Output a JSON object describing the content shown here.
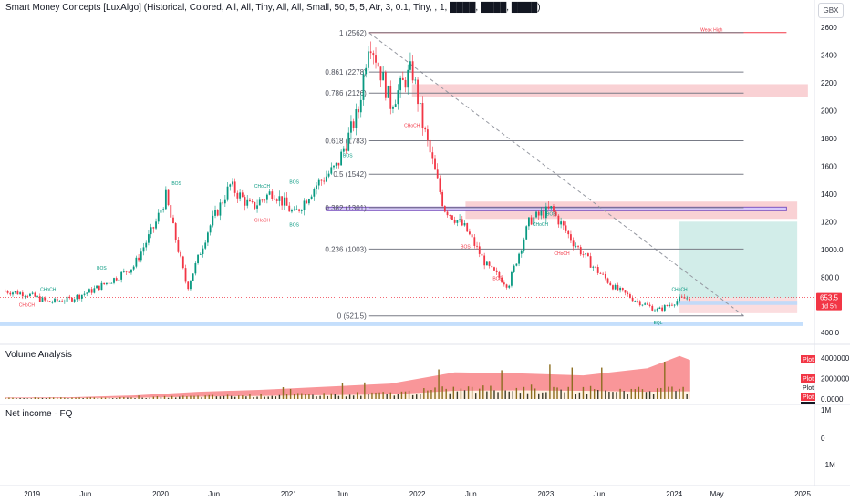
{
  "header": {
    "indicator_title": "Smart Money Concepts [LuxAlgo] (Historical, Colored, All, All, Tiny, All, All, Small, 50, 5, 5, Atr, 3, 0.1, Tiny, , 1, ████, ████, ████)",
    "currency": "GBX"
  },
  "price_label": {
    "value": "653.5",
    "countdown": "1d 5h",
    "color": "#f23645"
  },
  "panes": {
    "volume_title": "Volume Analysis",
    "net_income_title": "Net income · FQ",
    "volume_axis": [
      "4000000",
      "2000000",
      "0.0000"
    ],
    "plot_badges": [
      "Plot",
      "Plot",
      "Plot",
      "Plot"
    ],
    "net_income_axis": [
      "1M",
      "0",
      "−1M"
    ]
  },
  "chart_data": {
    "type": "candlestick",
    "ylim": [
      380,
      2700
    ],
    "price_ticks": [
      "2600",
      "2400",
      "2200",
      "2000",
      "1800",
      "1600",
      "1400",
      "1200",
      "1000.0",
      "800.0",
      "400.0"
    ],
    "x_ticks": [
      "2019",
      "Jun",
      "2020",
      "Jun",
      "2021",
      "Jun",
      "2022",
      "Jun",
      "2023",
      "Jun",
      "2024",
      "May",
      "2025"
    ],
    "close_path": [
      [
        "2018-10",
        700
      ],
      [
        "2018-12",
        680
      ],
      [
        "2019-02",
        620
      ],
      [
        "2019-04",
        640
      ],
      [
        "2019-06",
        700
      ],
      [
        "2019-08",
        780
      ],
      [
        "2019-10",
        880
      ],
      [
        "2019-12",
        1180
      ],
      [
        "2020-01",
        1380
      ],
      [
        "2020-03",
        720
      ],
      [
        "2020-05",
        1150
      ],
      [
        "2020-07",
        1460
      ],
      [
        "2020-09",
        1300
      ],
      [
        "2020-11",
        1420
      ],
      [
        "2021-01",
        1250
      ],
      [
        "2021-03",
        1460
      ],
      [
        "2021-05",
        1600
      ],
      [
        "2021-07",
        2000
      ],
      [
        "2021-08",
        2540
      ],
      [
        "2021-10",
        2050
      ],
      [
        "2021-12",
        2300
      ],
      [
        "2022-01",
        1900
      ],
      [
        "2022-03",
        1300
      ],
      [
        "2022-05",
        1150
      ],
      [
        "2022-07",
        880
      ],
      [
        "2022-09",
        740
      ],
      [
        "2022-11",
        1210
      ],
      [
        "2023-01",
        1290
      ],
      [
        "2023-03",
        1060
      ],
      [
        "2023-05",
        870
      ],
      [
        "2023-07",
        720
      ],
      [
        "2023-09",
        630
      ],
      [
        "2023-11",
        560
      ],
      [
        "2024-01",
        640
      ],
      [
        "2024-02",
        653.5
      ]
    ],
    "fib_levels": [
      {
        "label": "1 (2562)",
        "value": 2562
      },
      {
        "label": "0.861 (2278)",
        "value": 2278
      },
      {
        "label": "0.786 (2126)",
        "value": 2126
      },
      {
        "label": "0.618 (1783)",
        "value": 1783
      },
      {
        "label": "0.5 (1542)",
        "value": 1542
      },
      {
        "label": "0.382 (1301)",
        "value": 1301
      },
      {
        "label": "0.236 (1003)",
        "value": 1003
      },
      {
        "label": "0 (521.5)",
        "value": 521.5
      }
    ],
    "annotations": [
      {
        "text": "Weak High",
        "x": "2024-04",
        "y": 2570,
        "color": "#f23645"
      },
      {
        "text": "BOS",
        "x": "2020-02",
        "y": 1465,
        "color": "#089981"
      },
      {
        "text": "CHoCH",
        "x": "2020-10",
        "y": 1445,
        "color": "#089981"
      },
      {
        "text": "CHoCH",
        "x": "2020-10",
        "y": 1200,
        "color": "#f23645"
      },
      {
        "text": "BOS",
        "x": "2021-01",
        "y": 1475,
        "color": "#089981"
      },
      {
        "text": "BOS",
        "x": "2021-01",
        "y": 1165,
        "color": "#089981"
      },
      {
        "text": "BOS",
        "x": "2021-06",
        "y": 1665,
        "color": "#089981"
      },
      {
        "text": "CHoCH",
        "x": "2021-12",
        "y": 1880,
        "color": "#f23645"
      },
      {
        "text": "BOS",
        "x": "2019-07",
        "y": 855,
        "color": "#089981"
      },
      {
        "text": "CHoCH",
        "x": "2019-02",
        "y": 700,
        "color": "#089981"
      },
      {
        "text": "CHoCH",
        "x": "2018-12",
        "y": 590,
        "color": "#f23645"
      },
      {
        "text": "BOS",
        "x": "2022-05",
        "y": 1010,
        "color": "#f23645"
      },
      {
        "text": "BOS",
        "x": "2022-08",
        "y": 780,
        "color": "#f23645"
      },
      {
        "text": "CHoCH",
        "x": "2022-12",
        "y": 1170,
        "color": "#089981"
      },
      {
        "text": "BOS",
        "x": "2023-01",
        "y": 1245,
        "color": "#089981"
      },
      {
        "text": "CHoCH",
        "x": "2023-02",
        "y": 960,
        "color": "#f23645"
      },
      {
        "text": "CHoCH",
        "x": "2024-01",
        "y": 700,
        "color": "#089981"
      },
      {
        "text": "EQL",
        "x": "2023-11",
        "y": 462,
        "color": "#089981"
      }
    ],
    "volume": {
      "ylim": [
        0,
        4800000
      ],
      "dates": [
        "2018-10",
        "2019-04",
        "2019-10",
        "2020-04",
        "2020-10",
        "2021-04",
        "2021-10",
        "2022-04",
        "2022-10",
        "2023-04",
        "2023-10",
        "2024-01",
        "2024-02"
      ],
      "upper_band": [
        150000,
        170000,
        350000,
        700000,
        900000,
        1200000,
        1500000,
        2600000,
        2500000,
        2300000,
        3000000,
        4200000,
        3800000
      ],
      "lower_band": [
        80000,
        90000,
        120000,
        220000,
        300000,
        380000,
        450000,
        800000,
        850000,
        800000,
        700000,
        750000,
        750000
      ]
    },
    "colors": {
      "up": "#089981",
      "down": "#f23645",
      "fib": "#787b86",
      "supply": "#f7c1c5",
      "target": "#bfe6df",
      "demand": "#bbd9fb"
    }
  }
}
